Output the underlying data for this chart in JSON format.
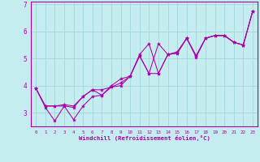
{
  "xlabel": "Windchill (Refroidissement éolien,°C)",
  "xlim": [
    -0.5,
    23.5
  ],
  "ylim": [
    2.5,
    7.1
  ],
  "xticks": [
    0,
    1,
    2,
    3,
    4,
    5,
    6,
    7,
    8,
    9,
    10,
    11,
    12,
    13,
    14,
    15,
    16,
    17,
    18,
    19,
    20,
    21,
    22,
    23
  ],
  "yticks": [
    3,
    4,
    5,
    6,
    7
  ],
  "bg_color": "#c5ecee",
  "line_color": "#aa00aa",
  "grid_color": "#a0d8dc",
  "series": [
    {
      "x": [
        0,
        1,
        2,
        3,
        4,
        5,
        6,
        7,
        8,
        9,
        10,
        11,
        12,
        13,
        14,
        15,
        16,
        17,
        18,
        19,
        20,
        21,
        22,
        23
      ],
      "y": [
        3.9,
        3.2,
        2.7,
        3.25,
        3.2,
        3.6,
        3.85,
        3.85,
        3.95,
        4.0,
        4.35,
        5.1,
        4.45,
        4.45,
        5.15,
        5.2,
        5.75,
        5.05,
        5.75,
        5.85,
        5.85,
        5.6,
        5.5,
        6.75
      ]
    },
    {
      "x": [
        0,
        1,
        2,
        3,
        4,
        5,
        6,
        7,
        8,
        9,
        10,
        11,
        12,
        13,
        14,
        15,
        16,
        17,
        18,
        19,
        20,
        21,
        22,
        23
      ],
      "y": [
        3.9,
        3.25,
        3.25,
        3.25,
        2.75,
        3.25,
        3.6,
        3.65,
        4.0,
        4.25,
        4.35,
        5.15,
        5.55,
        4.45,
        5.15,
        5.25,
        5.75,
        5.1,
        5.75,
        5.85,
        5.85,
        5.6,
        5.5,
        6.75
      ]
    },
    {
      "x": [
        0,
        1,
        2,
        3,
        4,
        5,
        6,
        7,
        8,
        9,
        10,
        11,
        12,
        13,
        14,
        15,
        16,
        17,
        18,
        19,
        20,
        21,
        22,
        23
      ],
      "y": [
        3.9,
        3.25,
        3.25,
        3.3,
        3.25,
        3.6,
        3.85,
        3.65,
        3.95,
        4.1,
        4.35,
        5.1,
        4.45,
        5.55,
        5.15,
        5.2,
        5.75,
        5.1,
        5.75,
        5.85,
        5.85,
        5.6,
        5.5,
        6.75
      ]
    }
  ]
}
